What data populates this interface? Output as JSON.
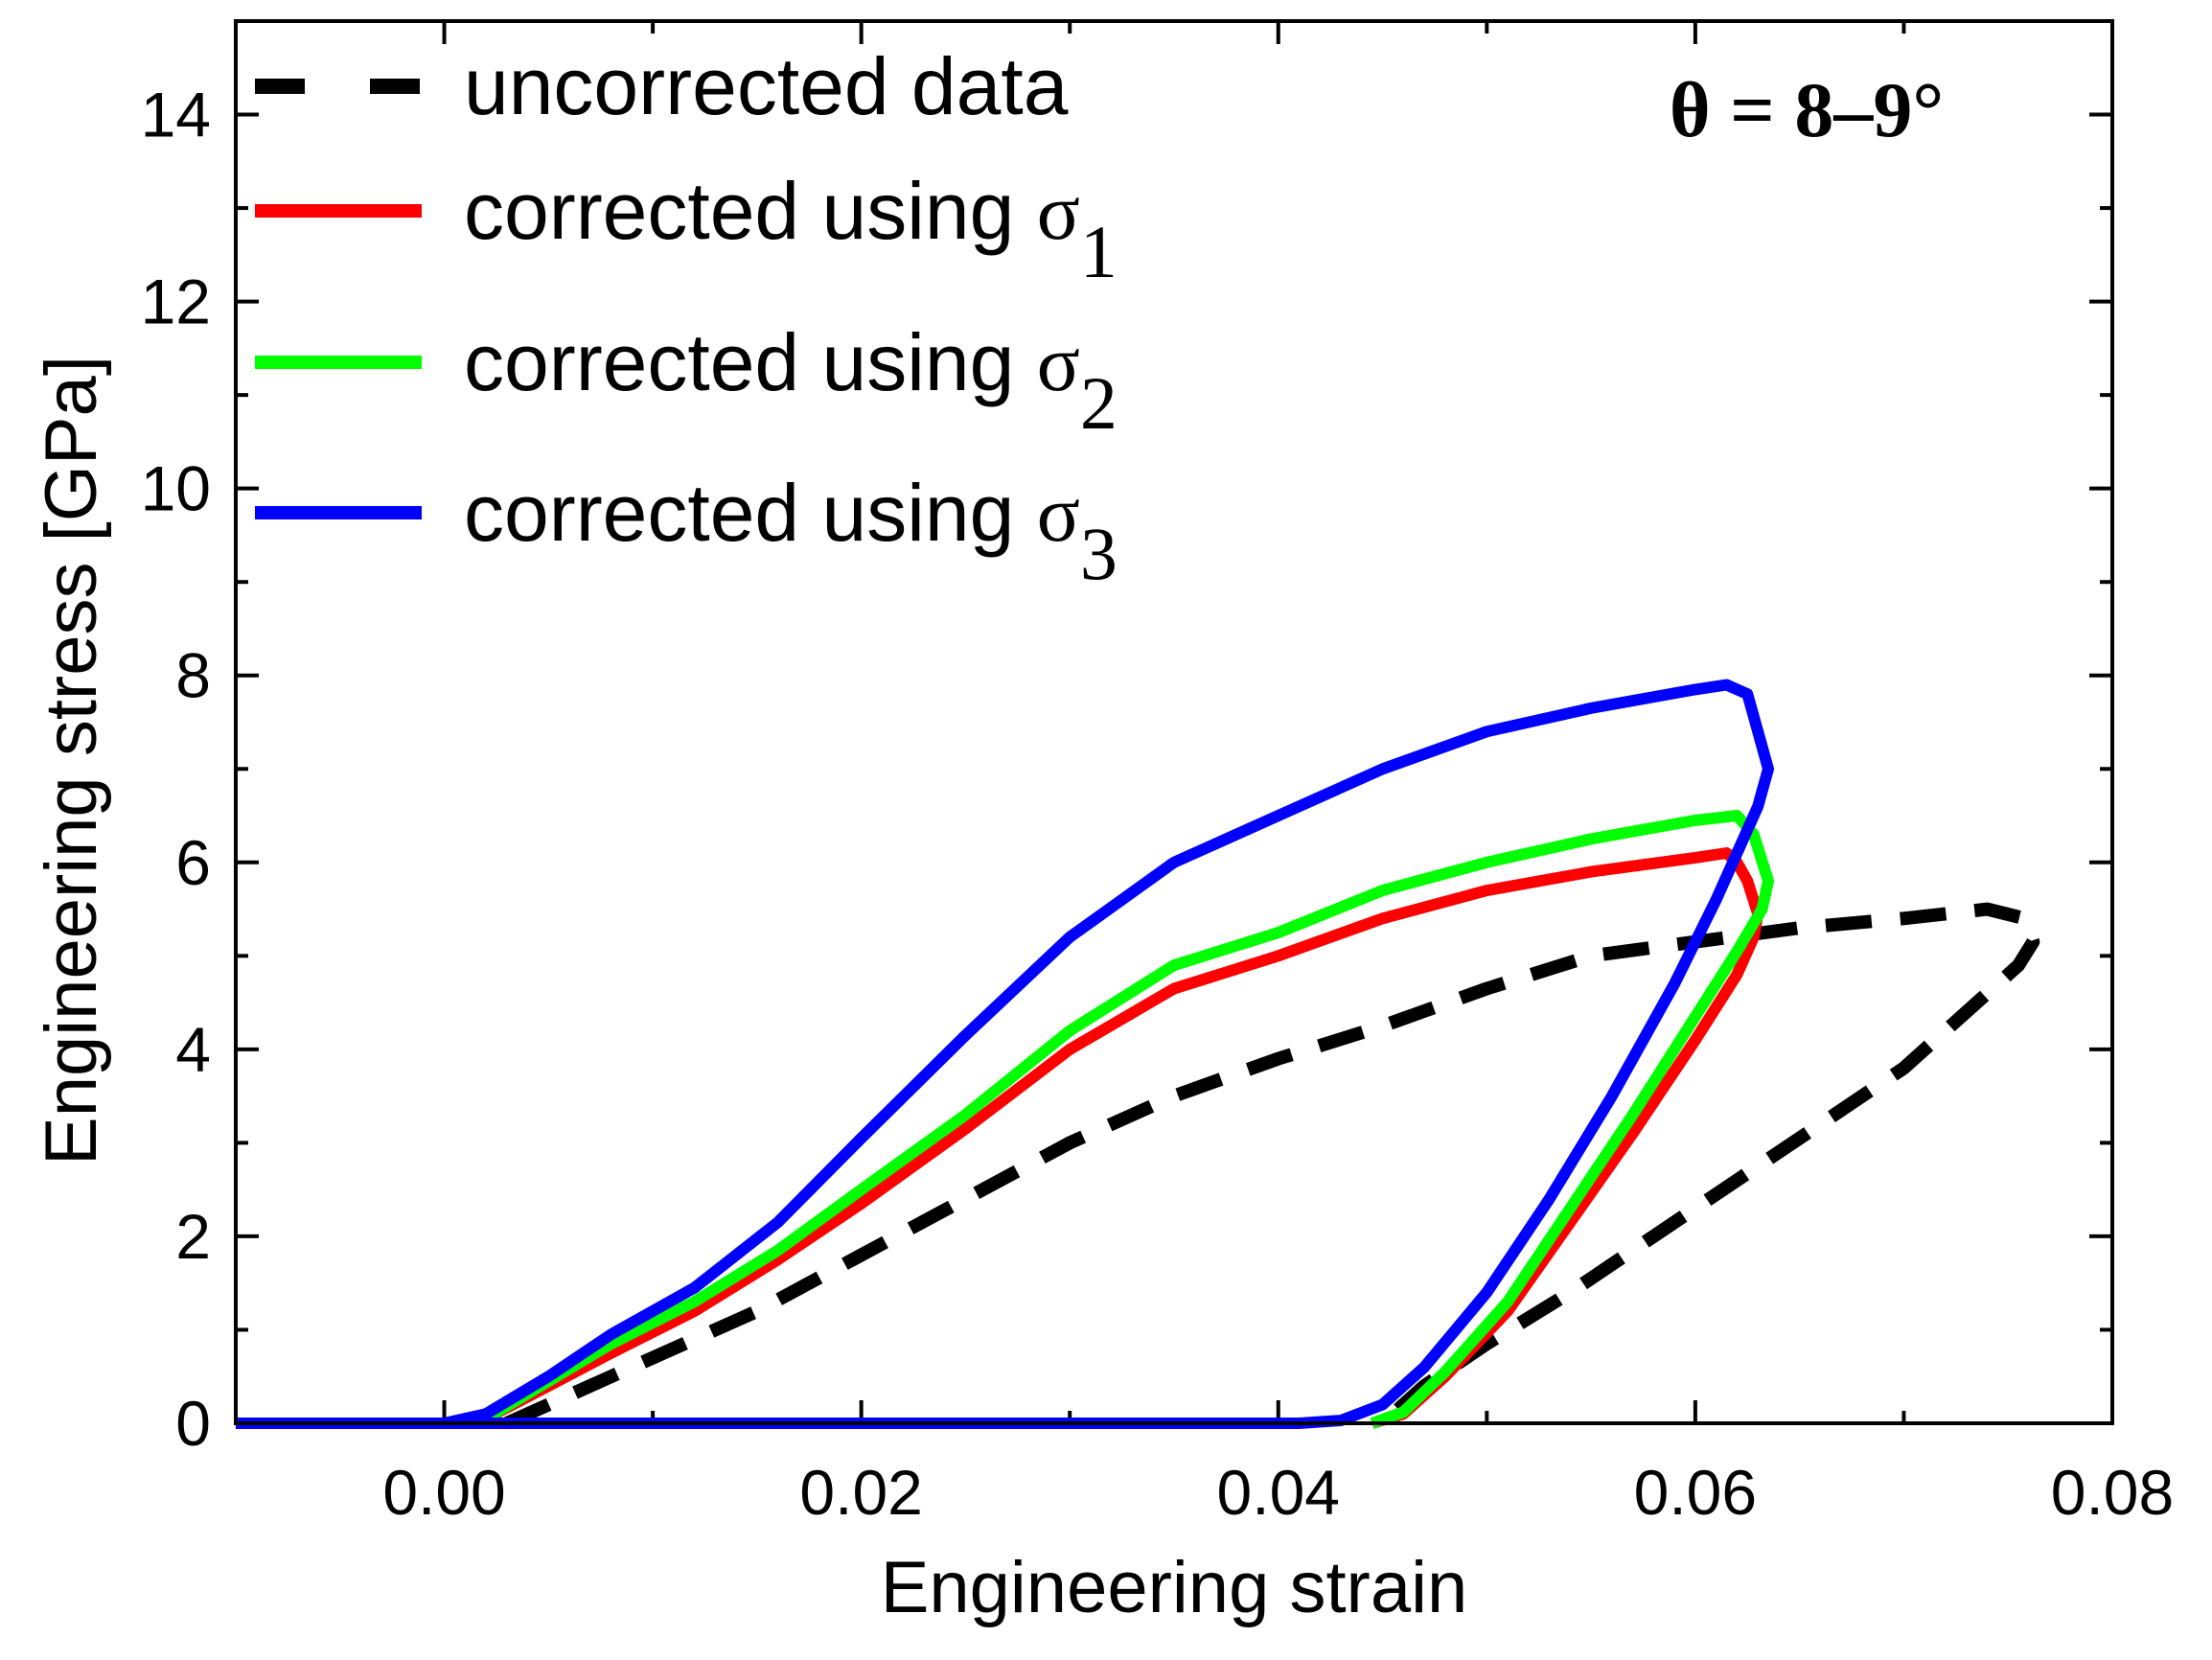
{
  "chart_data": {
    "type": "line",
    "title": "",
    "xlabel": "Engineering strain",
    "ylabel": "Engineering stress [GPa]",
    "xlim": [
      -0.01,
      0.08
    ],
    "ylim": [
      0,
      15
    ],
    "x_ticks": [
      0.0,
      0.02,
      0.04,
      0.06,
      0.08
    ],
    "x_tick_labels": [
      "0.00",
      "0.02",
      "0.04",
      "0.06",
      "0.08"
    ],
    "y_ticks": [
      0,
      2,
      4,
      6,
      8,
      10,
      12,
      14
    ],
    "y_tick_labels": [
      "0",
      "2",
      "4",
      "6",
      "8",
      "10",
      "12",
      "14"
    ],
    "grid": false,
    "legend_position": "top-left",
    "annotation": "θ = 8–9°",
    "series": [
      {
        "name": "uncorrected data",
        "label_main": "uncorrected data",
        "label_sub": "",
        "color": "#000000",
        "style": "dashed",
        "x": [
          0.003,
          0.006,
          0.01,
          0.015,
          0.02,
          0.025,
          0.03,
          0.035,
          0.04,
          0.045,
          0.05,
          0.055,
          0.06,
          0.065,
          0.07,
          0.074,
          0.0758,
          0.0762,
          0.0755,
          0.074,
          0.07,
          0.066,
          0.062,
          0.058,
          0.054,
          0.05,
          0.047,
          0.045
        ],
        "y": [
          0.0,
          0.3,
          0.7,
          1.2,
          1.8,
          2.4,
          3.0,
          3.5,
          3.9,
          4.25,
          4.65,
          5.0,
          5.15,
          5.3,
          5.4,
          5.5,
          5.4,
          5.15,
          4.9,
          4.6,
          3.8,
          3.2,
          2.6,
          2.0,
          1.4,
          0.85,
          0.4,
          0.0
        ]
      },
      {
        "name": "corrected using σ1",
        "label_main": "corrected using σ",
        "label_sub": "1",
        "color": "#ff0000",
        "style": "solid",
        "x": [
          -0.01,
          0.0,
          0.002,
          0.005,
          0.008,
          0.012,
          0.016,
          0.02,
          0.025,
          0.03,
          0.035,
          0.04,
          0.045,
          0.05,
          0.055,
          0.06,
          0.0615,
          0.062,
          0.0625,
          0.063,
          0.0628,
          0.062,
          0.06,
          0.057,
          0.054,
          0.051,
          0.048,
          0.046,
          0.0445
        ],
        "y": [
          0.0,
          0.0,
          0.05,
          0.4,
          0.75,
          1.2,
          1.75,
          2.35,
          3.15,
          4.0,
          4.65,
          5.0,
          5.4,
          5.7,
          5.9,
          6.05,
          6.1,
          6.0,
          5.8,
          5.45,
          5.2,
          4.8,
          4.1,
          3.1,
          2.15,
          1.2,
          0.5,
          0.1,
          0.0
        ]
      },
      {
        "name": "corrected using σ2",
        "label_main": "corrected using σ",
        "label_sub": "2",
        "color": "#00ff00",
        "style": "solid",
        "x": [
          0.002,
          0.005,
          0.008,
          0.012,
          0.016,
          0.02,
          0.025,
          0.03,
          0.035,
          0.04,
          0.045,
          0.05,
          0.055,
          0.06,
          0.062,
          0.0628,
          0.0635,
          0.0632,
          0.062,
          0.06,
          0.057,
          0.054,
          0.051,
          0.048,
          0.046,
          0.0445
        ],
        "y": [
          0.05,
          0.45,
          0.85,
          1.3,
          1.85,
          2.5,
          3.3,
          4.2,
          4.9,
          5.25,
          5.7,
          6.0,
          6.25,
          6.45,
          6.5,
          6.3,
          5.8,
          5.5,
          5.05,
          4.35,
          3.3,
          2.3,
          1.3,
          0.55,
          0.12,
          0.0
        ]
      },
      {
        "name": "corrected using σ3",
        "label_main": "corrected using σ",
        "label_sub": "3",
        "color": "#0000ff",
        "style": "solid",
        "x": [
          -0.01,
          0.0,
          0.002,
          0.005,
          0.008,
          0.012,
          0.016,
          0.02,
          0.025,
          0.03,
          0.035,
          0.04,
          0.045,
          0.05,
          0.055,
          0.06,
          0.0615,
          0.0625,
          0.063,
          0.0635,
          0.063,
          0.061,
          0.059,
          0.056,
          0.053,
          0.05,
          0.047,
          0.045,
          0.043,
          0.041,
          0.0
        ],
        "y": [
          0.0,
          0.0,
          0.1,
          0.5,
          0.95,
          1.45,
          2.15,
          3.05,
          4.15,
          5.2,
          6.0,
          6.5,
          7.0,
          7.4,
          7.65,
          7.85,
          7.9,
          7.8,
          7.4,
          7.0,
          6.6,
          5.6,
          4.7,
          3.5,
          2.4,
          1.4,
          0.6,
          0.2,
          0.03,
          0.0,
          0.0
        ]
      }
    ]
  }
}
